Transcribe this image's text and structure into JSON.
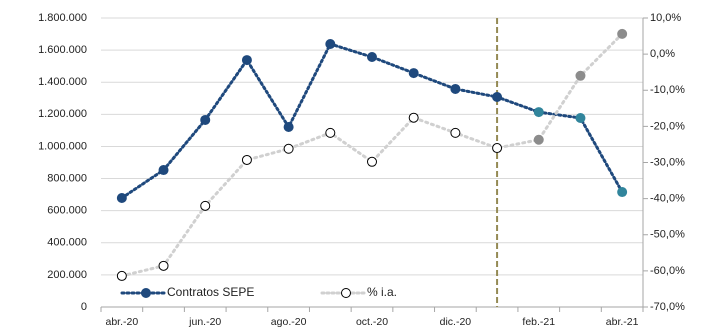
{
  "chart_data": {
    "type": "line",
    "categories": [
      "abr.-20",
      null,
      "jun.-20",
      null,
      "ago.-20",
      null,
      "oct.-20",
      null,
      "dic.-20",
      null,
      "feb.-21",
      null,
      "abr.-21"
    ],
    "series": [
      {
        "name": "Contratos SEPE",
        "color": "#1f497d",
        "point_colors": [
          "#1f497d",
          "#1f497d",
          "#1f497d",
          "#1f497d",
          "#1f497d",
          "#1f497d",
          "#1f497d",
          "#1f497d",
          "#1f497d",
          "#1f497d",
          "#31859c",
          "#31859c",
          "#31859c"
        ],
        "values": [
          679000,
          853000,
          1165000,
          1538000,
          1121000,
          1638000,
          1557000,
          1457000,
          1358000,
          1308000,
          1214000,
          1177000,
          716000
        ]
      },
      {
        "name": "% i.a.",
        "color": "#d0d0d0",
        "axis": "y2",
        "point_colors": [
          "#ffffff",
          "#ffffff",
          "#ffffff",
          "#ffffff",
          "#ffffff",
          "#ffffff",
          "#ffffff",
          "#ffffff",
          "#ffffff",
          "#ffffff",
          "#8c8c8c",
          "#8c8c8c",
          "#8c8c8c"
        ],
        "values": [
          -61.4,
          -58.6,
          -42.0,
          -29.3,
          -26.2,
          -21.8,
          -29.8,
          -17.6,
          -21.8,
          -26.0,
          -23.7,
          -6.0,
          5.6
        ]
      }
    ],
    "ylim": [
      0,
      1800000
    ],
    "yticks": [
      0,
      {
        "value": 200000,
        "label": "200.000"
      },
      {
        "value": 400000,
        "label": "400.000"
      },
      {
        "value": 600000,
        "label": "600.000"
      },
      {
        "value": 800000,
        "label": "800.000"
      },
      {
        "value": 1000000,
        "label": "1.000.000"
      },
      {
        "value": 1200000,
        "label": "1.200.000"
      },
      {
        "value": 1400000,
        "label": "1.400.000"
      },
      {
        "value": 1600000,
        "label": "1.600.000"
      },
      {
        "value": 1800000,
        "label": "1.800.000"
      }
    ],
    "y2lim": [
      -70,
      10
    ],
    "y2ticks": [
      {
        "value": -70,
        "label": "-70,0%"
      },
      {
        "value": -60,
        "label": "-60,0%"
      },
      {
        "value": -50,
        "label": "-50,0%"
      },
      {
        "value": -40,
        "label": "-40,0%"
      },
      {
        "value": -30,
        "label": "-30,0%"
      },
      {
        "value": -20,
        "label": "-20,0%"
      },
      {
        "value": -10,
        "label": "-10,0%"
      },
      {
        "value": 0,
        "label": "0,0%"
      },
      {
        "value": 10,
        "label": "10,0%"
      }
    ],
    "grid": true,
    "legend": "bottom"
  }
}
